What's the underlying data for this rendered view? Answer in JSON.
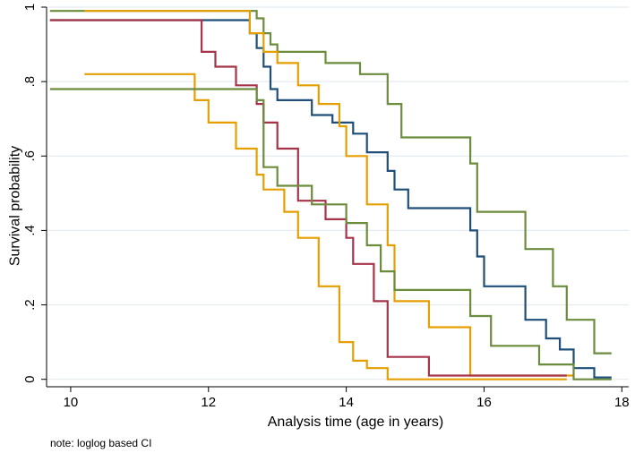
{
  "chart_data": {
    "type": "line",
    "step": true,
    "xlabel": "Analysis time (age in years)",
    "ylabel": "Survival probability",
    "note": "note: loglog based CI",
    "xlim": [
      9.65,
      18.1
    ],
    "ylim": [
      -0.02,
      1.0
    ],
    "xticks": [
      10,
      12,
      14,
      16,
      18
    ],
    "xtick_labels": [
      "10",
      "12",
      "14",
      "16",
      "18"
    ],
    "yticks": [
      0,
      0.2,
      0.4,
      0.6,
      0.8,
      1.0
    ],
    "ytick_labels": [
      "0",
      ".2",
      ".4",
      ".6",
      ".8",
      "1"
    ],
    "grid": true,
    "series": [
      {
        "name": "group1-upper-ci",
        "color": "#6b8c3c",
        "x": [
          9.7,
          12.4,
          12.7,
          12.8,
          12.9,
          13.0,
          13.7,
          14.2,
          14.6,
          14.8,
          15.8,
          15.9,
          16.6,
          17.0,
          17.2,
          17.6,
          17.85
        ],
        "y": [
          0.99,
          0.99,
          0.97,
          0.93,
          0.9,
          0.88,
          0.85,
          0.82,
          0.74,
          0.65,
          0.58,
          0.45,
          0.35,
          0.25,
          0.16,
          0.07,
          0.07
        ]
      },
      {
        "name": "group1-estimate",
        "color": "#1f4e79",
        "x": [
          9.7,
          12.3,
          12.6,
          12.7,
          12.8,
          12.9,
          13.0,
          13.5,
          13.8,
          14.1,
          14.3,
          14.6,
          14.7,
          14.9,
          15.8,
          15.9,
          16.0,
          16.6,
          16.9,
          17.1,
          17.3,
          17.6,
          17.85
        ],
        "y": [
          0.965,
          0.965,
          0.93,
          0.89,
          0.84,
          0.78,
          0.75,
          0.71,
          0.69,
          0.66,
          0.61,
          0.56,
          0.51,
          0.46,
          0.4,
          0.33,
          0.25,
          0.16,
          0.11,
          0.08,
          0.03,
          0.005,
          0.005
        ]
      },
      {
        "name": "group2-upper-ci",
        "color": "#e69f00",
        "x": [
          10.2,
          12.0,
          12.6,
          12.8,
          13.0,
          13.3,
          13.6,
          13.9,
          14.0,
          14.3,
          14.6,
          14.7,
          15.2,
          15.8,
          17.3
        ],
        "y": [
          0.99,
          0.99,
          0.93,
          0.88,
          0.85,
          0.79,
          0.74,
          0.68,
          0.6,
          0.47,
          0.36,
          0.21,
          0.14,
          0.01,
          0.01
        ]
      },
      {
        "name": "group2-estimate",
        "color": "#a5344a",
        "x": [
          9.7,
          11.7,
          11.9,
          12.1,
          12.4,
          12.7,
          12.8,
          13.0,
          13.3,
          13.7,
          14.0,
          14.1,
          14.4,
          14.6,
          15.2,
          15.8,
          17.2
        ],
        "y": [
          0.965,
          0.965,
          0.88,
          0.84,
          0.79,
          0.74,
          0.69,
          0.62,
          0.48,
          0.43,
          0.38,
          0.31,
          0.21,
          0.06,
          0.01,
          0.01,
          0.01
        ]
      },
      {
        "name": "group2-lower-ci",
        "color": "#e69f00",
        "x": [
          10.2,
          11.7,
          11.8,
          12.0,
          12.4,
          12.7,
          12.8,
          13.1,
          13.3,
          13.6,
          13.9,
          14.1,
          14.3,
          14.6,
          17.2
        ],
        "y": [
          0.82,
          0.82,
          0.75,
          0.69,
          0.62,
          0.55,
          0.51,
          0.45,
          0.38,
          0.25,
          0.1,
          0.05,
          0.03,
          0.0,
          0.0
        ]
      },
      {
        "name": "group1-lower-ci",
        "color": "#6b8c3c",
        "x": [
          9.7,
          12.4,
          12.7,
          12.8,
          13.0,
          13.5,
          14.0,
          14.3,
          14.5,
          14.7,
          15.1,
          15.8,
          16.1,
          16.8,
          17.3,
          17.85
        ],
        "y": [
          0.78,
          0.78,
          0.75,
          0.57,
          0.52,
          0.47,
          0.42,
          0.36,
          0.29,
          0.24,
          0.24,
          0.17,
          0.09,
          0.04,
          0.0,
          0.0
        ]
      }
    ]
  }
}
